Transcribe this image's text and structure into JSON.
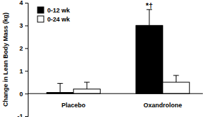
{
  "chart_data": {
    "type": "bar",
    "y_label": "Change in Lean Body Mass (kg)",
    "categories": [
      "Placebo",
      "Oxandrolone"
    ],
    "series": [
      {
        "name": "0-12 wk",
        "color": "#000000",
        "values": [
          0.05,
          3.0
        ],
        "errors": [
          0.4,
          0.7
        ]
      },
      {
        "name": "0-24 wk",
        "color": "#ffffff",
        "values": [
          0.2,
          0.5
        ],
        "errors": [
          0.3,
          0.3
        ]
      }
    ],
    "ylim": [
      -1,
      4
    ],
    "yticks": [
      -1,
      0,
      1,
      2,
      3,
      4
    ],
    "grid": false,
    "legend": "top-left",
    "annotations": [
      {
        "text": "*†",
        "category": "Oxandrolone",
        "series": "0-12 wk"
      }
    ]
  }
}
